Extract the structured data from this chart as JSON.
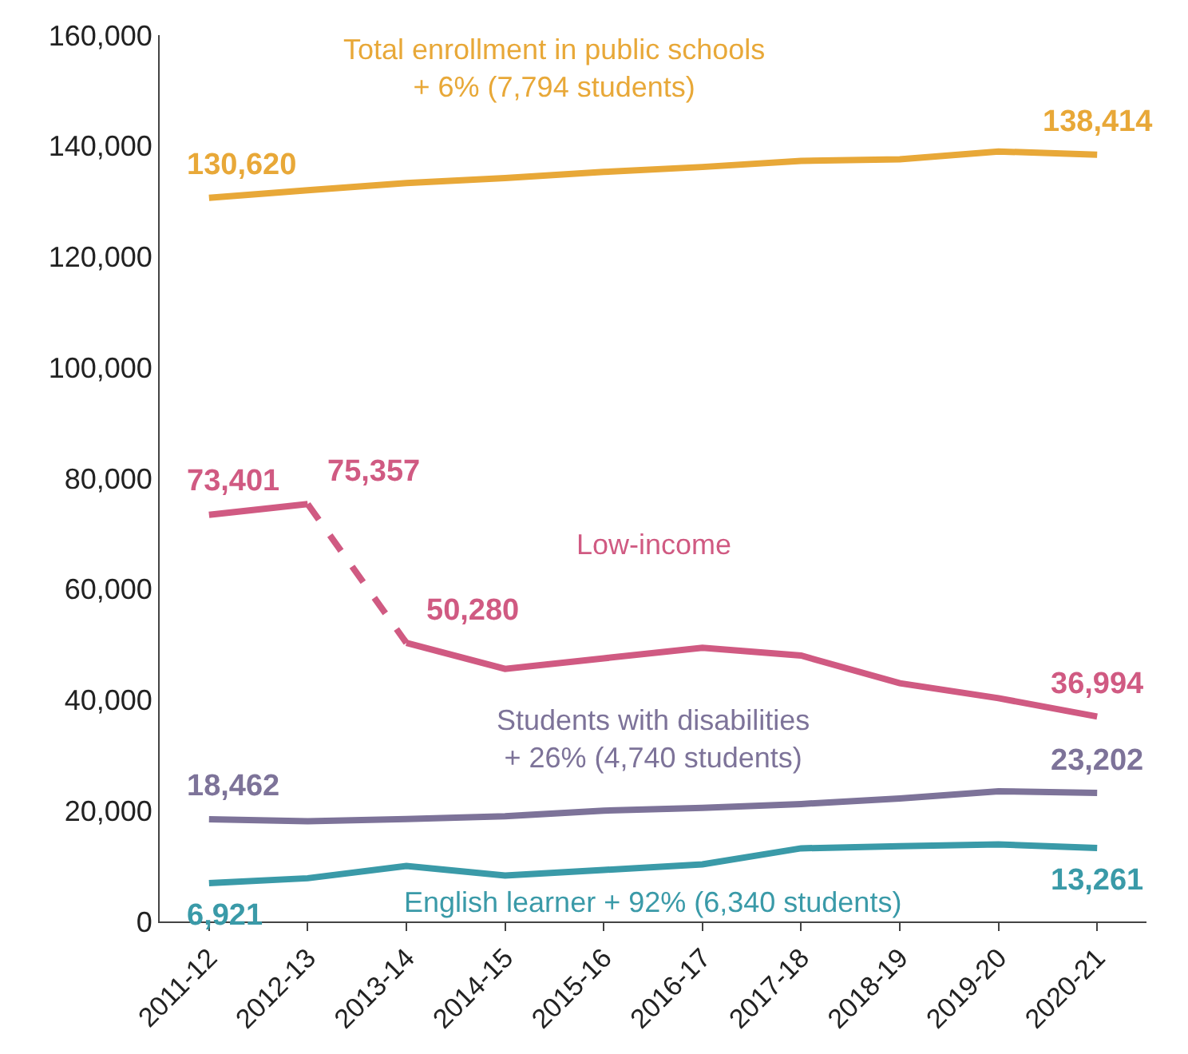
{
  "chart_data": {
    "type": "line",
    "categories": [
      "2011-12",
      "2012-13",
      "2013-14",
      "2014-15",
      "2015-16",
      "2016-17",
      "2017-18",
      "2018-19",
      "2019-20",
      "2020-21"
    ],
    "series": [
      {
        "name": "Total enrollment in public schools",
        "color": "#e8a838",
        "values": [
          130620,
          132000,
          133300,
          134200,
          135300,
          136200,
          137300,
          137600,
          139000,
          138414
        ],
        "value_labels": [
          "130,620",
          null,
          null,
          null,
          null,
          null,
          null,
          null,
          null,
          "138,414"
        ]
      },
      {
        "name": "Low-income",
        "color": "#d05a82",
        "values": [
          73401,
          75357,
          null,
          null,
          null,
          null,
          null,
          null,
          null,
          null
        ],
        "value_labels": [
          "73,401",
          "75,357",
          null,
          null,
          null,
          null,
          null,
          null,
          null,
          null
        ]
      },
      {
        "color": "#d05a82",
        "line_style": "dashed",
        "values": [
          null,
          75357,
          50280,
          null,
          null,
          null,
          null,
          null,
          null,
          null
        ]
      },
      {
        "color": "#d05a82",
        "values": [
          null,
          null,
          50280,
          45600,
          47500,
          49400,
          48000,
          43000,
          40300,
          36994
        ],
        "value_labels": [
          null,
          null,
          "50,280",
          null,
          null,
          null,
          null,
          null,
          null,
          "36,994"
        ]
      },
      {
        "name": "Students with disabilities",
        "color": "#7d7399",
        "values": [
          18462,
          18100,
          18500,
          19000,
          20000,
          20500,
          21200,
          22200,
          23500,
          23202
        ],
        "value_labels": [
          "18,462",
          null,
          null,
          null,
          null,
          null,
          null,
          null,
          null,
          "23,202"
        ]
      },
      {
        "name": "English learner",
        "color": "#3a9aa8",
        "values": [
          6921,
          7800,
          10000,
          8300,
          9300,
          10300,
          13200,
          13600,
          13900,
          13261
        ],
        "value_labels": [
          "6,921",
          null,
          null,
          null,
          null,
          null,
          null,
          null,
          null,
          "13,261"
        ]
      }
    ],
    "annotations": [
      "+ 6% (7,794 students)",
      "+ 26% (4,740 students)",
      "+ 92% (6,340 students)"
    ],
    "ylim": [
      0,
      160000
    ],
    "yticks": [
      0,
      {
        "value": 20000,
        "label": "20,000"
      },
      {
        "value": 40000,
        "label": "40,000"
      },
      {
        "value": 60000,
        "label": "60,000"
      },
      {
        "value": 80000,
        "label": "80,000"
      },
      {
        "value": 100000,
        "label": "100,000"
      },
      {
        "value": 120000,
        "label": "120,000"
      },
      {
        "value": 140000,
        "label": "140,000"
      },
      {
        "value": 160000,
        "label": "160,000"
      }
    ],
    "grid": false,
    "legend": false,
    "line_style": "solid",
    "marker": "none"
  }
}
